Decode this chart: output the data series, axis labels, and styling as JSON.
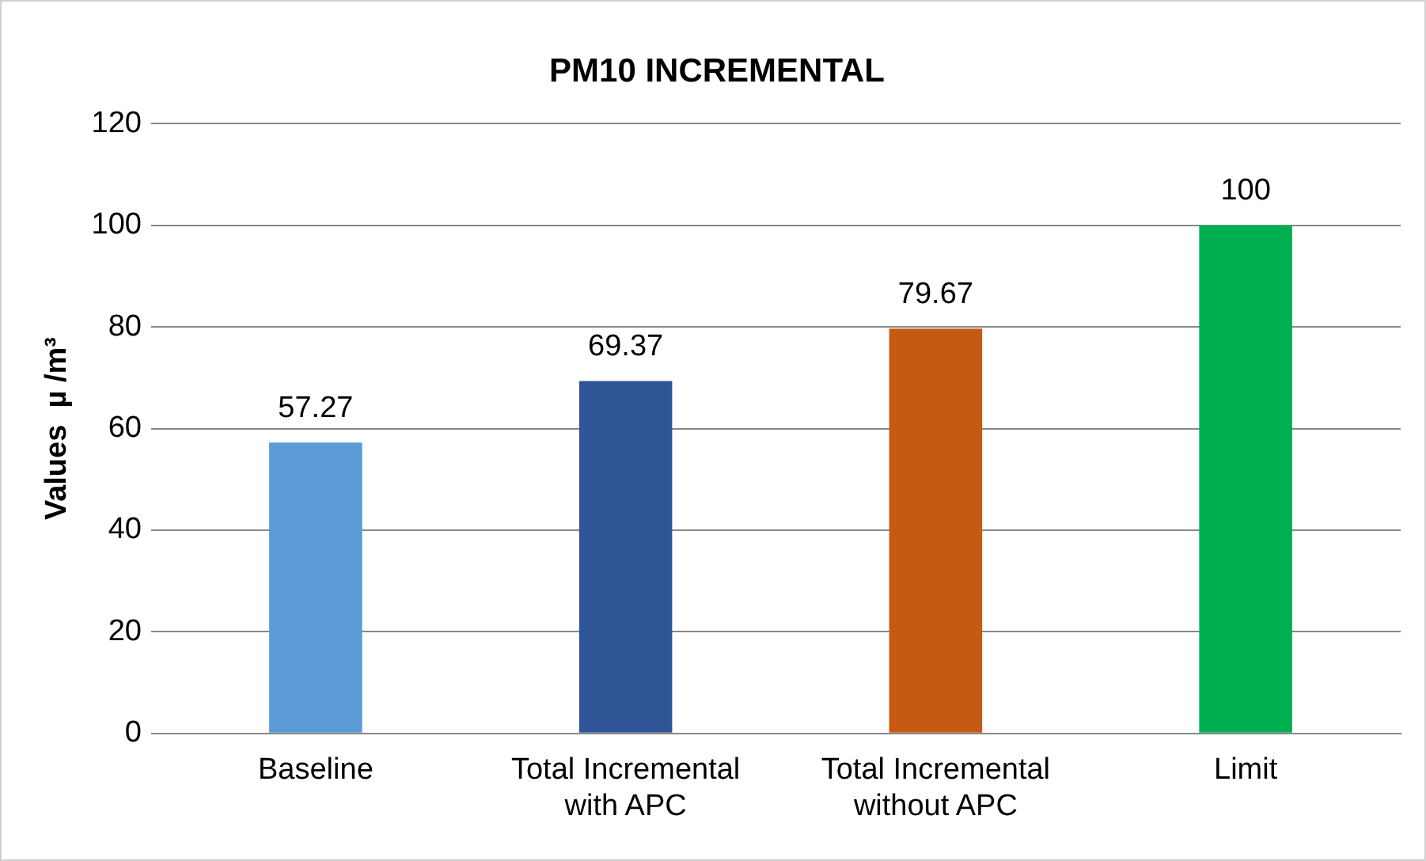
{
  "chart_data": {
    "type": "bar",
    "title": "PM10 INCREMENTAL",
    "ylabel": "Values  µ /m³",
    "categories": [
      "Baseline",
      "Total Incremental with APC",
      "Total Incremental without APC",
      "Limit"
    ],
    "values": [
      57.27,
      69.37,
      79.67,
      100
    ],
    "colors": [
      "#5b9bd5",
      "#2f5597",
      "#c55a11",
      "#00b050"
    ],
    "ylim": [
      0,
      120
    ],
    "yticks": [
      0,
      20,
      40,
      60,
      80,
      100,
      120
    ],
    "grid": "y",
    "data_labels": true,
    "legend": false
  }
}
